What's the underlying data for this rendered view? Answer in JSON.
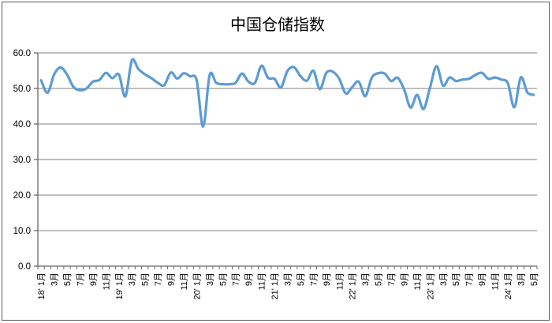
{
  "chart_data": {
    "type": "line",
    "title": "中国仓储指数",
    "xlabel": "",
    "ylabel": "",
    "ylim": [
      0,
      60
    ],
    "ytick_step": 10,
    "ytick_labels_top_down": [
      "60.0",
      "50.0",
      "40.0",
      "30.0",
      "20.0",
      "10.0",
      "0.0"
    ],
    "x_range": "2018-01 to 2024-05, monthly",
    "xtick_labels_every_2_months": [
      "18' 1月",
      "3月",
      "5月",
      "7月",
      "9月",
      "11月",
      "19' 1月",
      "3月",
      "5月",
      "7月",
      "9月",
      "11月",
      "20' 1月",
      "3月",
      "5月",
      "7月",
      "9月",
      "11月",
      "21' 1月",
      "3月",
      "5月",
      "7月",
      "9月",
      "11月",
      "22' 1月",
      "3月",
      "5月",
      "7月",
      "9月",
      "11月",
      "23' 1月",
      "3月",
      "5月",
      "7月",
      "9月",
      "11月",
      "24' 1月",
      "3月",
      "5月"
    ],
    "series": [
      {
        "name": "中国仓储指数",
        "values": [
          52.3,
          48.8,
          53.9,
          55.9,
          53.9,
          50.4,
          49.5,
          50.0,
          51.9,
          52.4,
          54.4,
          52.9,
          53.9,
          47.8,
          57.9,
          55.5,
          54.0,
          52.9,
          51.6,
          50.9,
          54.5,
          52.8,
          54.3,
          53.4,
          52.3,
          39.3,
          53.8,
          51.6,
          51.2,
          51.2,
          51.6,
          54.2,
          51.9,
          51.6,
          56.4,
          53.0,
          52.7,
          50.3,
          54.9,
          56.0,
          53.5,
          52.2,
          55.0,
          49.8,
          54.4,
          54.7,
          52.7,
          48.6,
          50.4,
          51.9,
          47.8,
          53.0,
          54.3,
          54.2,
          52.1,
          53.0,
          49.7,
          44.6,
          48.2,
          44.2,
          50.3,
          56.3,
          50.8,
          53.1,
          52.1,
          52.5,
          52.7,
          53.8,
          54.4,
          52.7,
          53.1,
          52.5,
          51.5,
          44.7,
          53.1,
          48.9,
          48.2
        ]
      }
    ],
    "smoothed_line": true,
    "grid": "horizontal",
    "legend": "none",
    "colors": {
      "line": "#5B9BD5",
      "gridline": "#7f7f7f",
      "axis": "#666666",
      "text": "#000000",
      "frame_border": "#595959",
      "background": "#ffffff"
    }
  }
}
